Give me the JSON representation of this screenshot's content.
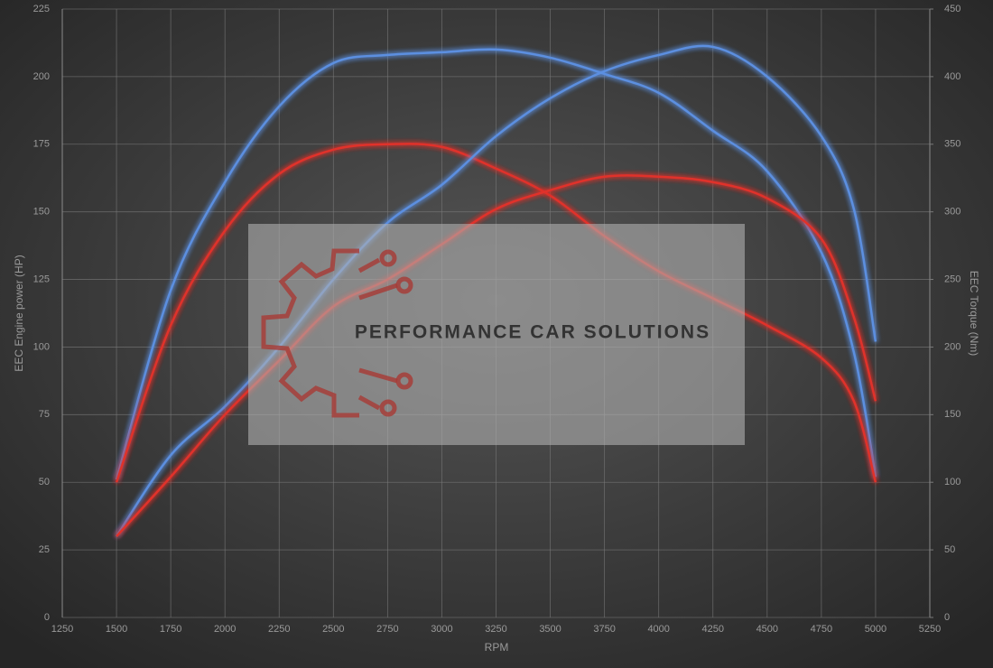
{
  "chart_data": {
    "type": "line",
    "x_label": "RPM",
    "y_label": "EEC Engine power (HP)",
    "y2_label": "EEC Torque (Nm)",
    "watermark": "PERFORMANCE CAR SOLUTIONS",
    "x": [
      1500,
      1750,
      2000,
      2250,
      2500,
      2750,
      3000,
      3250,
      3500,
      3750,
      4000,
      4250,
      4500,
      4750,
      4900,
      5000
    ],
    "xlim": [
      1250,
      5250
    ],
    "xticks": [
      1250,
      1500,
      1750,
      2000,
      2250,
      2500,
      2750,
      3000,
      3250,
      3500,
      3750,
      4000,
      4250,
      4500,
      4750,
      5000,
      5250
    ],
    "ylim": [
      0,
      225
    ],
    "yticks": [
      0,
      25,
      50,
      75,
      100,
      125,
      150,
      175,
      200,
      225
    ],
    "y2lim": [
      0,
      450
    ],
    "y2ticks": [
      0,
      50,
      100,
      150,
      200,
      250,
      300,
      350,
      400,
      450
    ],
    "grid": true,
    "series": [
      {
        "color": "#5b8fe0",
        "axis": "y2",
        "values": [
          102,
          242,
          322,
          378,
          410,
          416,
          418,
          420,
          414,
          402,
          388,
          360,
          330,
          270,
          196,
          104
        ]
      },
      {
        "color": "#e0322c",
        "axis": "y2",
        "values": [
          100,
          216,
          286,
          328,
          346,
          350,
          348,
          332,
          312,
          282,
          256,
          236,
          216,
          192,
          160,
          100
        ]
      },
      {
        "color": "#5b8fe0",
        "values": [
          30,
          60,
          78,
          100,
          125,
          146,
          160,
          178,
          192,
          202,
          208,
          211,
          200,
          178,
          151,
          102
        ]
      },
      {
        "color": "#e0322c",
        "values": [
          30,
          52,
          75,
          95,
          115,
          125,
          138,
          151,
          158,
          163,
          163,
          161,
          155,
          140,
          111,
          80
        ]
      }
    ]
  }
}
